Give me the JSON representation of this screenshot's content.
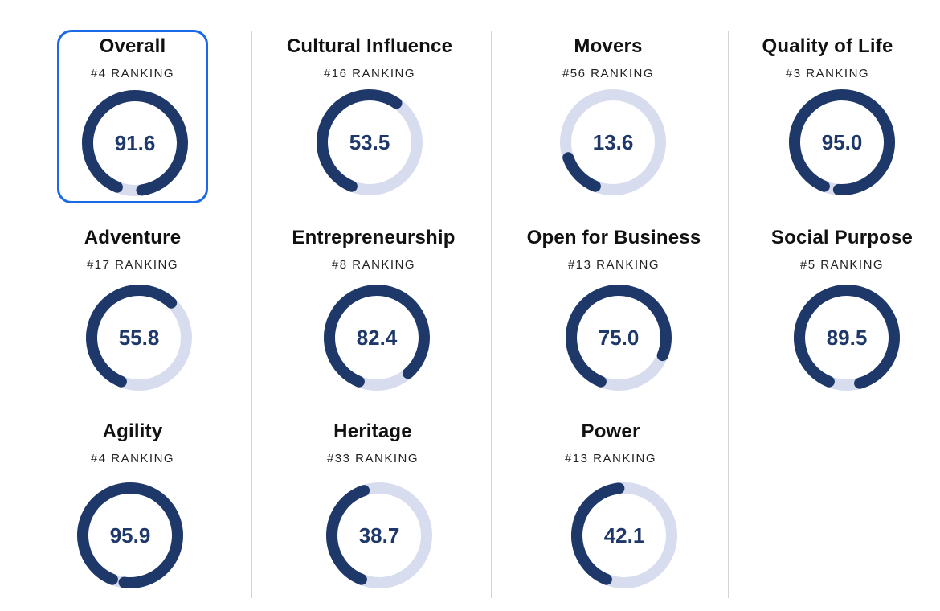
{
  "colors": {
    "ring_fill": "#1e3869",
    "ring_track": "#d7ddef",
    "selected_border": "#1a6ae8"
  },
  "selected": "overall",
  "metrics": [
    {
      "id": "overall",
      "title": "Overall",
      "rank": "#4 RANKING",
      "score": "91.6",
      "fraction": 0.916
    },
    {
      "id": "cultural-influence",
      "title": "Cultural Influence",
      "rank": "#16 RANKING",
      "score": "53.5",
      "fraction": 0.535
    },
    {
      "id": "movers",
      "title": "Movers",
      "rank": "#56 RANKING",
      "score": "13.6",
      "fraction": 0.136
    },
    {
      "id": "quality-of-life",
      "title": "Quality of Life",
      "rank": "#3 RANKING",
      "score": "95.0",
      "fraction": 0.95
    },
    {
      "id": "adventure",
      "title": "Adventure",
      "rank": "#17 RANKING",
      "score": "55.8",
      "fraction": 0.558
    },
    {
      "id": "entrepreneurship",
      "title": "Entrepreneurship",
      "rank": "#8 RANKING",
      "score": "82.4",
      "fraction": 0.824
    },
    {
      "id": "open-for-business",
      "title": "Open for Business",
      "rank": "#13 RANKING",
      "score": "75.0",
      "fraction": 0.75
    },
    {
      "id": "social-purpose",
      "title": "Social Purpose",
      "rank": "#5 RANKING",
      "score": "89.5",
      "fraction": 0.895
    },
    {
      "id": "agility",
      "title": "Agility",
      "rank": "#4 RANKING",
      "score": "95.9",
      "fraction": 0.959
    },
    {
      "id": "heritage",
      "title": "Heritage",
      "rank": "#33 RANKING",
      "score": "38.7",
      "fraction": 0.387
    },
    {
      "id": "power",
      "title": "Power",
      "rank": "#13 RANKING",
      "score": "42.1",
      "fraction": 0.421
    }
  ]
}
